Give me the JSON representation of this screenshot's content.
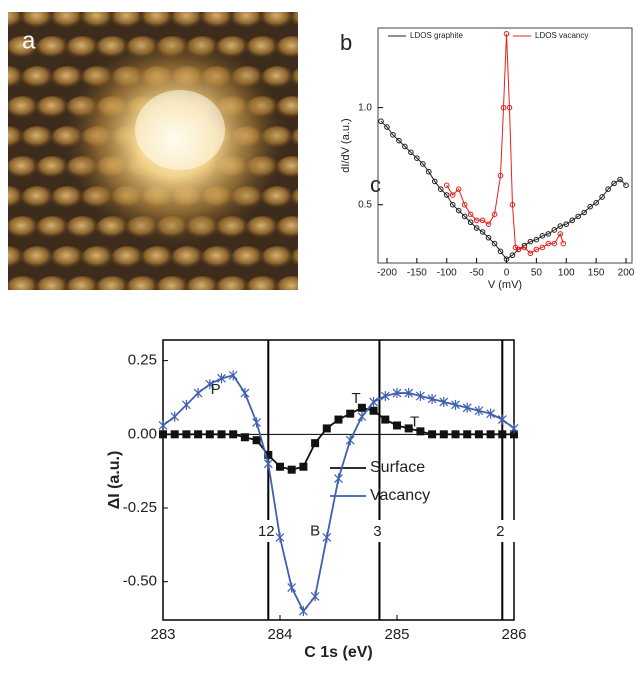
{
  "panel_labels": [
    "a",
    "b",
    "c"
  ],
  "chart_data": [
    {
      "type": "line",
      "xlabel": "V (mV)",
      "ylabel": "dI/dV (a.u.)",
      "legend": "top",
      "xlim": [
        -215,
        210
      ],
      "xticks": [
        -200,
        -150,
        -100,
        -50,
        0,
        50,
        100,
        150,
        200
      ],
      "ylim": [
        0.2,
        1.41
      ],
      "yticks": [
        {
          "value": 0.5,
          "label": "0.5"
        },
        {
          "value": 1.0,
          "label": "1.0"
        }
      ],
      "series": [
        {
          "name": "LDOS graphite",
          "color": "#222222",
          "marker": "circle",
          "x": [
            -210,
            -200,
            -190,
            -180,
            -170,
            -160,
            -150,
            -140,
            -130,
            -120,
            -110,
            -100,
            -90,
            -80,
            -70,
            -60,
            -50,
            -40,
            -30,
            -20,
            -10,
            0,
            10,
            20,
            30,
            40,
            50,
            60,
            70,
            80,
            90,
            100,
            110,
            120,
            130,
            140,
            150,
            160,
            170,
            180,
            190,
            200
          ],
          "values": [
            0.93,
            0.9,
            0.86,
            0.83,
            0.8,
            0.77,
            0.74,
            0.71,
            0.67,
            0.62,
            0.58,
            0.55,
            0.5,
            0.47,
            0.44,
            0.41,
            0.38,
            0.36,
            0.33,
            0.3,
            0.26,
            0.22,
            0.24,
            0.27,
            0.29,
            0.31,
            0.32,
            0.34,
            0.35,
            0.37,
            0.39,
            0.4,
            0.42,
            0.44,
            0.46,
            0.49,
            0.51,
            0.54,
            0.58,
            0.61,
            0.63,
            0.6
          ]
        },
        {
          "name": "LDOS vacancy",
          "color": "#e8201c",
          "marker": "circle",
          "x": [
            -100,
            -90,
            -80,
            -70,
            -60,
            -50,
            -40,
            -30,
            -20,
            -10,
            -5,
            0,
            5,
            10,
            15,
            20,
            30,
            40,
            50,
            60,
            70,
            80,
            90,
            95
          ],
          "values": [
            0.6,
            0.55,
            0.58,
            0.5,
            0.45,
            0.42,
            0.42,
            0.4,
            0.45,
            0.65,
            1.0,
            1.38,
            1.0,
            0.5,
            0.28,
            0.27,
            0.28,
            0.25,
            0.27,
            0.28,
            0.3,
            0.3,
            0.35,
            0.3
          ]
        }
      ]
    },
    {
      "type": "line",
      "xlabel": "C 1s (eV)",
      "ylabel": "ΔI (a.u.)",
      "legend": "right",
      "xlim": [
        283,
        286
      ],
      "xticks": [
        283,
        284,
        285,
        286
      ],
      "ylim": [
        -0.63,
        0.32
      ],
      "yticks": [
        {
          "value": -0.5,
          "label": "-0.50"
        },
        {
          "value": -0.25,
          "label": "-0.25"
        },
        {
          "value": 0,
          "label": "0.00"
        },
        {
          "value": 0.25,
          "label": "0.25"
        }
      ],
      "x": [
        283,
        283.1,
        283.2,
        283.3,
        283.4,
        283.5,
        283.6,
        283.7,
        283.8,
        283.9,
        284,
        284.1,
        284.2,
        284.3,
        284.4,
        284.5,
        284.6,
        284.7,
        284.8,
        284.9,
        285,
        285.1,
        285.2,
        285.3,
        285.4,
        285.5,
        285.6,
        285.7,
        285.8,
        285.9,
        286
      ],
      "series": [
        {
          "name": "Surface",
          "color": "#111111",
          "marker": "square",
          "values": [
            0,
            0,
            0,
            0,
            0,
            0,
            0,
            -0.01,
            -0.02,
            -0.07,
            -0.11,
            -0.12,
            -0.11,
            -0.03,
            0.02,
            0.05,
            0.07,
            0.09,
            0.08,
            0.05,
            0.03,
            0.02,
            0.01,
            0,
            0,
            0,
            0,
            0,
            0,
            0,
            0
          ]
        },
        {
          "name": "Vacancy",
          "color": "#3f5fb0",
          "marker": "x",
          "values": [
            0.03,
            0.06,
            0.1,
            0.14,
            0.17,
            0.19,
            0.2,
            0.14,
            0.04,
            -0.1,
            -0.35,
            -0.52,
            -0.6,
            -0.55,
            -0.35,
            -0.15,
            -0.02,
            0.06,
            0.11,
            0.13,
            0.14,
            0.14,
            0.13,
            0.12,
            0.11,
            0.1,
            0.09,
            0.08,
            0.07,
            0.05,
            0.02
          ]
        }
      ],
      "markers": [
        {
          "x": 283.9,
          "label": "12"
        },
        {
          "x": 284.85,
          "label": "3"
        },
        {
          "x": 285.9,
          "label": "2"
        }
      ],
      "annotations": [
        "P",
        "B",
        "T",
        "T"
      ]
    }
  ]
}
